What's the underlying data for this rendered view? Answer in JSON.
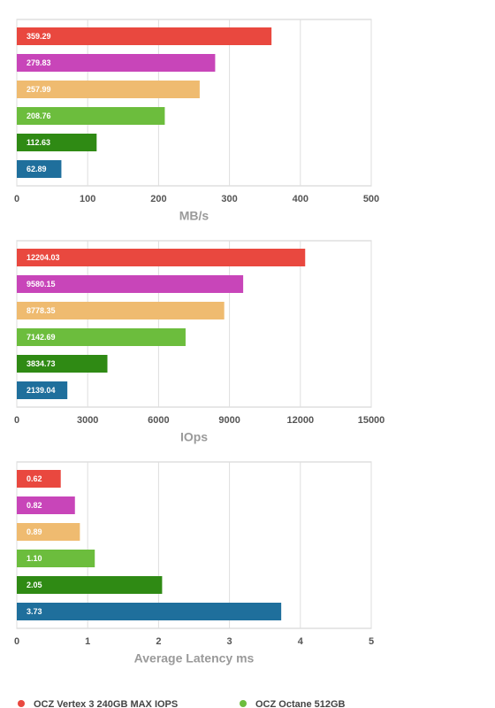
{
  "chart_data": [
    {
      "type": "bar",
      "orientation": "horizontal",
      "xlabel": "MB/s",
      "values": [
        359.29,
        279.83,
        257.99,
        208.76,
        112.63,
        62.89
      ],
      "colors": [
        "#e9483f",
        "#c845b9",
        "#efbb70",
        "#6cbd3d",
        "#2f8a14",
        "#1f6f9c"
      ],
      "xlim": [
        0,
        500
      ],
      "xticks": [
        0,
        100,
        200,
        300,
        400,
        500
      ],
      "grid": true
    },
    {
      "type": "bar",
      "orientation": "horizontal",
      "xlabel": "IOps",
      "values": [
        12204.03,
        9580.15,
        8778.35,
        7142.69,
        3834.73,
        2139.04
      ],
      "colors": [
        "#e9483f",
        "#c845b9",
        "#efbb70",
        "#6cbd3d",
        "#2f8a14",
        "#1f6f9c"
      ],
      "xlim": [
        0,
        15000
      ],
      "xticks": [
        0,
        3000,
        6000,
        9000,
        12000,
        15000
      ],
      "grid": true
    },
    {
      "type": "bar",
      "orientation": "horizontal",
      "xlabel": "Average Latency ms",
      "values": [
        0.62,
        0.82,
        0.89,
        1.1,
        2.05,
        3.73
      ],
      "value_labels": [
        "0.62",
        "0.82",
        "0.89",
        "1.10",
        "2.05",
        "3.73"
      ],
      "colors": [
        "#e9483f",
        "#c845b9",
        "#efbb70",
        "#6cbd3d",
        "#2f8a14",
        "#1f6f9c"
      ],
      "xlim": [
        0,
        5
      ],
      "xticks": [
        0,
        1,
        2,
        3,
        4,
        5
      ],
      "grid": true
    }
  ],
  "legend": [
    {
      "name": "OCZ Vertex 3 240GB MAX IOPS",
      "color": "#e9483f"
    },
    {
      "name": "OCZ Octane 512GB",
      "color": "#6cbd3d"
    }
  ]
}
